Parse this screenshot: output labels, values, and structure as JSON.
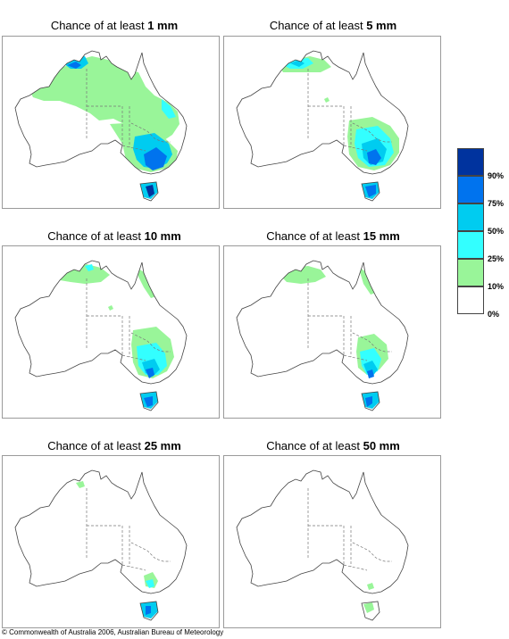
{
  "panels": [
    {
      "prefix": "Chance of at least ",
      "amount": "1 mm",
      "level": 1
    },
    {
      "prefix": "Chance of at least ",
      "amount": "5 mm",
      "level": 2
    },
    {
      "prefix": "Chance of at least ",
      "amount": "10 mm",
      "level": 3
    },
    {
      "prefix": "Chance of at least ",
      "amount": "15 mm",
      "level": 4
    },
    {
      "prefix": "Chance of at least ",
      "amount": "25 mm",
      "level": 5
    },
    {
      "prefix": "Chance of at least ",
      "amount": "50 mm",
      "level": 6
    }
  ],
  "legend": {
    "colors": [
      "#ffffff",
      "#99f599",
      "#33ffff",
      "#00ccf0",
      "#0073ee",
      "#00339e"
    ],
    "labels": [
      "0%",
      "10%",
      "25%",
      "50%",
      "75%",
      "90%"
    ]
  },
  "copyright": "© Commonwealth of Australia 2006, Australian Bureau of Meteorology"
}
